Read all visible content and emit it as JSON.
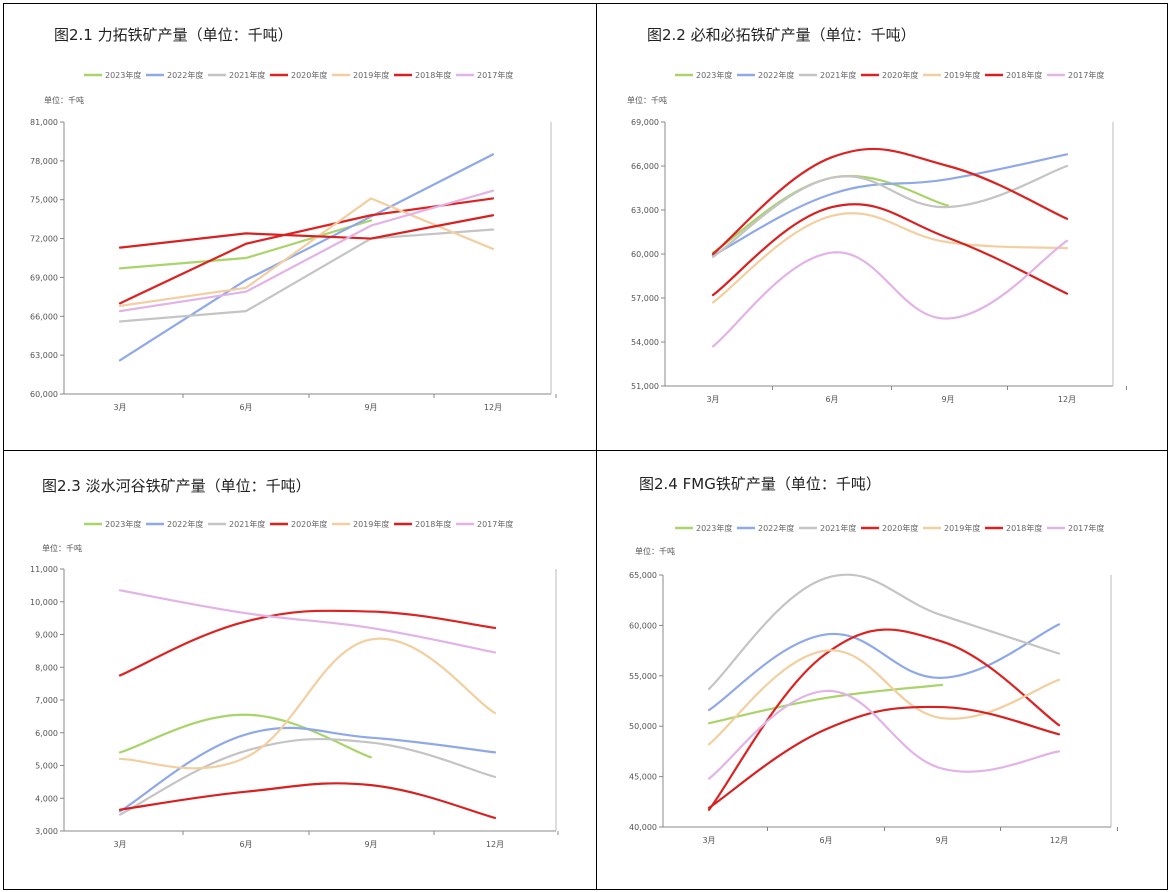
{
  "chart_data": [
    {
      "type": "line",
      "title": "图2.1  力拓铁矿产量（单位：千吨）",
      "unit_label": "单位：千吨",
      "categories": [
        "3月",
        "6月",
        "9月",
        "12月"
      ],
      "ylim": [
        60000,
        81000
      ],
      "yticks": [
        "60,000",
        "63,000",
        "66,000",
        "69,000",
        "72,000",
        "75,000",
        "78,000",
        "81,000"
      ],
      "smooth": false,
      "legend_position": "top",
      "series": [
        {
          "name": "2023年度",
          "color": "#a9d46a",
          "values": [
            69700,
            70500,
            73400,
            null
          ]
        },
        {
          "name": "2022年度",
          "color": "#8fa9e8",
          "values": [
            62600,
            68800,
            73700,
            78500
          ]
        },
        {
          "name": "2021年度",
          "color": "#c4c4c4",
          "values": [
            65600,
            66400,
            72000,
            72700
          ]
        },
        {
          "name": "2020年度",
          "color": "#dd2222",
          "values": [
            67000,
            71600,
            73800,
            75100
          ]
        },
        {
          "name": "2019年度",
          "color": "#f2cfa0",
          "values": [
            66800,
            68200,
            75100,
            71200
          ]
        },
        {
          "name": "2018年度",
          "color": "#d92020",
          "values": [
            71300,
            72400,
            72000,
            73800
          ]
        },
        {
          "name": "2017年度",
          "color": "#e2b3e6",
          "values": [
            66400,
            67900,
            73000,
            75700
          ]
        }
      ]
    },
    {
      "type": "line",
      "title": "图2.2  必和必拓铁矿产量（单位：千吨）",
      "unit_label": "单位：千吨",
      "categories": [
        "3月",
        "6月",
        "9月",
        "12月"
      ],
      "ylim": [
        51000,
        69000
      ],
      "yticks": [
        "51,000",
        "54,000",
        "57,000",
        "60,000",
        "63,000",
        "66,000",
        "69,000"
      ],
      "smooth": true,
      "legend_position": "top",
      "series": [
        {
          "name": "2023年度",
          "color": "#a9d46a",
          "values": [
            60100,
            65200,
            63300,
            null
          ]
        },
        {
          "name": "2022年度",
          "color": "#8fa9e8",
          "values": [
            59900,
            64100,
            65100,
            66800
          ]
        },
        {
          "name": "2021年度",
          "color": "#c4c4c4",
          "values": [
            59800,
            65200,
            63200,
            66000
          ]
        },
        {
          "name": "2020年度",
          "color": "#dd2222",
          "values": [
            60000,
            66600,
            66000,
            62400
          ]
        },
        {
          "name": "2019年度",
          "color": "#f2cfa0",
          "values": [
            56700,
            62600,
            60800,
            60400
          ]
        },
        {
          "name": "2018年度",
          "color": "#d92020",
          "values": [
            57200,
            63200,
            61100,
            57300
          ]
        },
        {
          "name": "2017年度",
          "color": "#e2b3e6",
          "values": [
            53700,
            60100,
            55600,
            60900
          ]
        }
      ]
    },
    {
      "type": "line",
      "title": "图2.3  淡水河谷铁矿产量（单位：千吨）",
      "unit_label": "单位：千吨",
      "categories": [
        "3月",
        "6月",
        "9月",
        "12月"
      ],
      "ylim": [
        3000,
        11000
      ],
      "yticks": [
        "3,000",
        "4,000",
        "5,000",
        "6,000",
        "7,000",
        "8,000",
        "9,000",
        "10,000",
        "11,000"
      ],
      "smooth": true,
      "legend_position": "top",
      "series": [
        {
          "name": "2023年度",
          "color": "#a9d46a",
          "values": [
            5400,
            6550,
            5250,
            null
          ]
        },
        {
          "name": "2022年度",
          "color": "#8fa9e8",
          "values": [
            3600,
            5950,
            5850,
            5400
          ]
        },
        {
          "name": "2021年度",
          "color": "#c4c4c4",
          "values": [
            3500,
            5450,
            5700,
            4650
          ]
        },
        {
          "name": "2020年度",
          "color": "#dd2222",
          "values": [
            7750,
            9400,
            9700,
            9200
          ]
        },
        {
          "name": "2019年度",
          "color": "#f2cfa0",
          "values": [
            5200,
            5250,
            8850,
            6600
          ]
        },
        {
          "name": "2018年度",
          "color": "#d92020",
          "values": [
            3650,
            4200,
            4400,
            3400
          ]
        },
        {
          "name": "2017年度",
          "color": "#e2b3e6",
          "values": [
            10350,
            9650,
            9200,
            8450
          ]
        }
      ]
    },
    {
      "type": "line",
      "title": "图2.4  FMG铁矿产量（单位：千吨）",
      "unit_label": "单位：千吨",
      "categories": [
        "3月",
        "6月",
        "9月",
        "12月"
      ],
      "ylim": [
        40000,
        65000
      ],
      "yticks": [
        "40,000",
        "45,000",
        "50,000",
        "55,000",
        "60,000",
        "65,000"
      ],
      "smooth": true,
      "legend_position": "top",
      "series": [
        {
          "name": "2023年度",
          "color": "#a9d46a",
          "values": [
            50300,
            52800,
            54100,
            null
          ]
        },
        {
          "name": "2022年度",
          "color": "#8fa9e8",
          "values": [
            51600,
            59100,
            54800,
            60100
          ]
        },
        {
          "name": "2021年度",
          "color": "#c4c4c4",
          "values": [
            53700,
            64700,
            61000,
            57200
          ]
        },
        {
          "name": "2020年度",
          "color": "#dd2222",
          "values": [
            41700,
            57200,
            58400,
            50100
          ]
        },
        {
          "name": "2019年度",
          "color": "#f2cfa0",
          "values": [
            48200,
            57500,
            50800,
            54600
          ]
        },
        {
          "name": "2018年度",
          "color": "#d92020",
          "values": [
            41900,
            49700,
            51900,
            49200
          ]
        },
        {
          "name": "2017年度",
          "color": "#e2b3e6",
          "values": [
            44800,
            53500,
            45800,
            47500
          ]
        }
      ]
    }
  ]
}
